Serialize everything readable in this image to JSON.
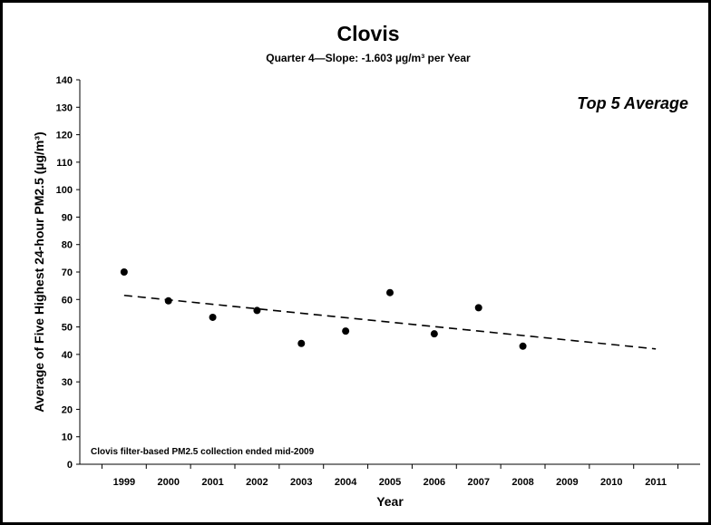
{
  "chart_data": {
    "type": "scatter",
    "title": "Clovis",
    "subtitle": "Quarter 4—Slope: -1.603 µg/m³ per Year",
    "xlabel": "Year",
    "ylabel": "Average of Five Highest 24-hour PM2.5 (µg/m³)",
    "x_ticks": [
      "",
      "1999",
      "2000",
      "2001",
      "2002",
      "2003",
      "2004",
      "2005",
      "2006",
      "2007",
      "2008",
      "2009",
      "2010",
      "2011"
    ],
    "y_ticks": [
      0,
      10,
      20,
      30,
      40,
      50,
      60,
      70,
      80,
      90,
      100,
      110,
      120,
      130,
      140
    ],
    "xlim": [
      1998,
      2012
    ],
    "ylim": [
      0,
      140
    ],
    "annotation": "Top 5 Average",
    "footnote": "Clovis filter-based PM2.5 collection ended mid-2009",
    "series": [
      {
        "x": [
          1999,
          2000,
          2001,
          2002,
          2003,
          2004,
          2005,
          2006,
          2007,
          2008
        ],
        "y": [
          70,
          59.5,
          53.5,
          56,
          44,
          48.5,
          62.5,
          47.5,
          57,
          43
        ]
      }
    ],
    "trendline": {
      "x": [
        1999,
        2011
      ],
      "y": [
        61.5,
        42
      ],
      "style": "dashed"
    },
    "grid": false,
    "colors": {
      "points": "#000000",
      "trendline": "#000000",
      "axes": "#000000"
    }
  }
}
